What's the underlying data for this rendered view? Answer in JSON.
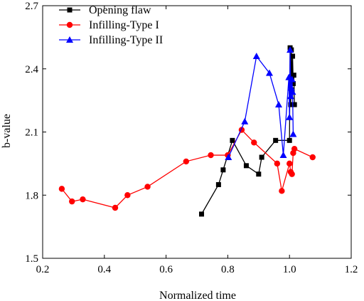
{
  "chart_data": {
    "type": "line",
    "title": "",
    "xlabel": "Normalized time",
    "ylabel": "b-value",
    "xlim": [
      0.2,
      1.2
    ],
    "ylim": [
      1.5,
      2.7
    ],
    "xticks": [
      0.2,
      0.4,
      0.6,
      0.8,
      1.0,
      1.2
    ],
    "yticks": [
      1.5,
      1.8,
      2.1,
      2.4,
      2.7
    ],
    "xtick_labels": [
      "0.2",
      "0.4",
      "0.6",
      "0.8",
      "1.0",
      "1.2"
    ],
    "ytick_labels": [
      "1.5",
      "1.8",
      "2.1",
      "2.4",
      "2.7"
    ],
    "grid": false,
    "legend_position": "top-left",
    "series": [
      {
        "name": "Opening flaw",
        "color": "#000000",
        "marker": "square",
        "x": [
          0.715,
          0.77,
          0.785,
          0.815,
          0.86,
          0.9,
          0.91,
          0.955,
          1.0,
          1.002,
          1.004,
          1.006,
          1.008,
          1.01,
          1.012,
          1.014,
          1.016
        ],
        "y": [
          1.71,
          1.85,
          1.92,
          2.06,
          1.94,
          1.9,
          1.98,
          2.06,
          2.06,
          2.5,
          2.23,
          2.49,
          2.3,
          2.46,
          2.33,
          2.37,
          2.23
        ]
      },
      {
        "name": "Infilling-Type I",
        "color": "#ff0000",
        "marker": "circle",
        "x": [
          0.262,
          0.295,
          0.33,
          0.435,
          0.475,
          0.54,
          0.665,
          0.745,
          0.8,
          0.845,
          0.885,
          0.96,
          0.975,
          1.0,
          1.004,
          1.008,
          1.012,
          1.016,
          1.075
        ],
        "y": [
          1.83,
          1.77,
          1.78,
          1.74,
          1.8,
          1.84,
          1.96,
          1.99,
          1.99,
          2.11,
          2.05,
          1.95,
          1.82,
          1.95,
          1.91,
          1.9,
          2.0,
          2.02,
          1.98
        ]
      },
      {
        "name": "Infilling-Type II",
        "color": "#0000ff",
        "marker": "triangle",
        "x": [
          0.802,
          0.855,
          0.893,
          0.935,
          0.965,
          0.98,
          0.998,
          1.0,
          1.002,
          1.004,
          1.006,
          1.008,
          1.01,
          1.012
        ],
        "y": [
          1.98,
          2.15,
          2.46,
          2.38,
          2.23,
          1.99,
          2.36,
          2.17,
          2.49,
          2.27,
          2.31,
          2.35,
          2.29,
          2.09
        ]
      }
    ]
  }
}
